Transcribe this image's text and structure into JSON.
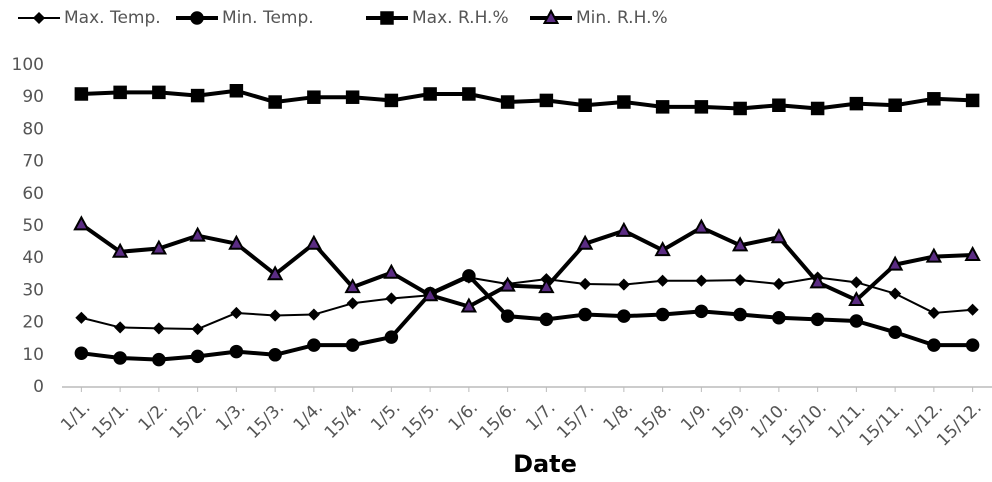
{
  "chart_data": {
    "type": "line",
    "x_label": "Date",
    "categories": [
      "1/1.",
      "15/1.",
      "1/2.",
      "15/2.",
      "1/3.",
      "15/3.",
      "1/4.",
      "15/4.",
      "1/5.",
      "15/5.",
      "1/6.",
      "15/6.",
      "1/7.",
      "15/7.",
      "1/8.",
      "15/8.",
      "1/9.",
      "15/9.",
      "1/10.",
      "15/10.",
      "1/11.",
      "15/11.",
      "1/12.",
      "15/12."
    ],
    "series": [
      {
        "name": "Max. Temp.",
        "color": "#000000",
        "marker": "diamond",
        "line_width": 2,
        "values": [
          21.5,
          18.5,
          18.2,
          18,
          23,
          22.2,
          22.5,
          26,
          27.5,
          28.5,
          34,
          32,
          33.5,
          32,
          31.8,
          33,
          33,
          33.2,
          32,
          34,
          32.5,
          29,
          23,
          24
        ]
      },
      {
        "name": "Min. Temp.",
        "color": "#000000",
        "marker": "circle",
        "line_width": 4,
        "values": [
          10.5,
          9,
          8.5,
          9.5,
          11,
          10,
          13,
          13,
          15.5,
          29,
          34.5,
          22,
          21,
          22.5,
          22,
          22.5,
          23.5,
          22.5,
          21.5,
          21,
          20.5,
          17,
          13,
          13
        ]
      },
      {
        "name": "Max. R.H.%",
        "color": "#000000",
        "marker": "square",
        "line_width": 4,
        "values": [
          91,
          91.5,
          91.5,
          90.5,
          92,
          88.5,
          90,
          90,
          89,
          91,
          91,
          88.5,
          89,
          87.5,
          88.5,
          87,
          87,
          86.5,
          87.5,
          86.5,
          88,
          87.5,
          89.5,
          89
        ]
      },
      {
        "name": "Min. R.H.%",
        "color": "#000000",
        "marker": "triangle",
        "marker_fill": "#5b2c83",
        "line_width": 4,
        "values": [
          50.5,
          42,
          43,
          47,
          44.5,
          35,
          44.5,
          31,
          35.5,
          28.5,
          25,
          31.5,
          31,
          44.5,
          48.5,
          42.5,
          49.5,
          44,
          46.5,
          32.5,
          27,
          38,
          40.5,
          41
        ]
      }
    ],
    "ylim": [
      0,
      100
    ],
    "yticks": [
      0,
      10,
      20,
      30,
      40,
      50,
      60,
      70,
      80,
      90,
      100
    ],
    "grid": false,
    "legend": "top"
  }
}
